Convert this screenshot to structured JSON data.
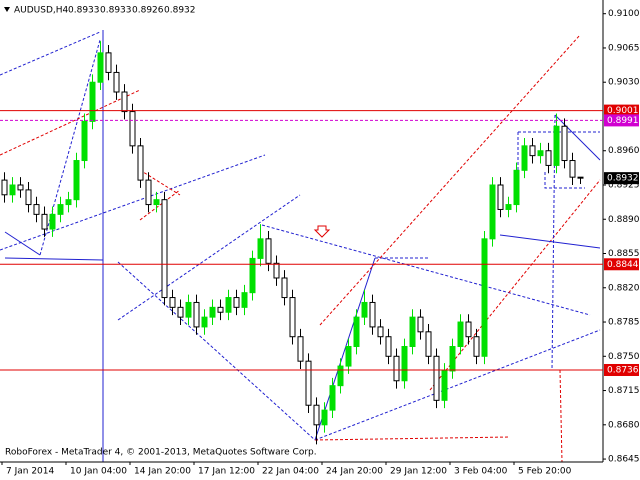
{
  "chart_data": {
    "type": "candlestick",
    "title": "AUDUSD,H4",
    "last_bar": [
      0.8933,
      0.8933,
      0.8926,
      0.8932
    ],
    "footer": "RoboForex - MetaTrader 4, © 2001-2013, MetaQuotes Software Corp.",
    "x_labels": [
      "7 Jan 2014",
      "10 Jan 04:00",
      "14 Jan 20:00",
      "17 Jan 12:00",
      "22 Jan 04:00",
      "24 Jan 20:00",
      "29 Jan 12:00",
      "3 Feb 04:00",
      "5 Feb 20:00"
    ],
    "up_color": "#00e000",
    "down_color": "#ffffff",
    "open": [
      0.893,
      0.8915,
      0.8925,
      0.892,
      0.8905,
      0.8895,
      0.888,
      0.8895,
      0.8905,
      0.891,
      0.895,
      0.899,
      0.903,
      0.906,
      0.904,
      0.902,
      0.9,
      0.8965,
      0.893,
      0.8905,
      0.891,
      0.881,
      0.88,
      0.879,
      0.8805,
      0.878,
      0.879,
      0.88,
      0.8795,
      0.881,
      0.88,
      0.8815,
      0.885,
      0.887,
      0.8845,
      0.883,
      0.881,
      0.877,
      0.8745,
      0.87,
      0.868,
      0.8695,
      0.872,
      0.874,
      0.876,
      0.879,
      0.8805,
      0.878,
      0.877,
      0.875,
      0.8725,
      0.876,
      0.879,
      0.8775,
      0.875,
      0.8705,
      0.8735,
      0.876,
      0.8785,
      0.877,
      0.875,
      0.887,
      0.8925,
      0.89,
      0.8905,
      0.894,
      0.8965,
      0.8955,
      0.896,
      0.8945,
      0.8985,
      0.895,
      0.8933
    ],
    "high": [
      0.8938,
      0.8933,
      0.8933,
      0.8928,
      0.8913,
      0.8903,
      0.8903,
      0.8913,
      0.8918,
      0.8958,
      0.8998,
      0.9038,
      0.9072,
      0.9068,
      0.9048,
      0.9028,
      0.9008,
      0.8973,
      0.8938,
      0.8918,
      0.8918,
      0.8818,
      0.8808,
      0.8813,
      0.8813,
      0.8798,
      0.8808,
      0.8808,
      0.8818,
      0.8818,
      0.8823,
      0.8858,
      0.8885,
      0.8878,
      0.8853,
      0.8838,
      0.8818,
      0.8778,
      0.8753,
      0.8708,
      0.8703,
      0.8728,
      0.8748,
      0.8768,
      0.8798,
      0.8818,
      0.8813,
      0.8788,
      0.8778,
      0.8758,
      0.8768,
      0.8798,
      0.8798,
      0.8783,
      0.8758,
      0.8743,
      0.8768,
      0.8793,
      0.8793,
      0.8778,
      0.8878,
      0.8933,
      0.8933,
      0.8913,
      0.8948,
      0.8973,
      0.8973,
      0.8968,
      0.8968,
      0.8998,
      0.8993,
      0.8958,
      0.8933
    ],
    "low": [
      0.8907,
      0.8907,
      0.8912,
      0.8897,
      0.8887,
      0.8872,
      0.8872,
      0.8887,
      0.8897,
      0.8902,
      0.8942,
      0.8982,
      0.9022,
      0.9032,
      0.9012,
      0.8992,
      0.8957,
      0.8922,
      0.8897,
      0.8897,
      0.8802,
      0.8792,
      0.8782,
      0.8782,
      0.8772,
      0.8772,
      0.8782,
      0.8787,
      0.8787,
      0.8792,
      0.8792,
      0.8807,
      0.8842,
      0.8837,
      0.8822,
      0.8802,
      0.8762,
      0.8737,
      0.8692,
      0.866,
      0.8672,
      0.8687,
      0.8712,
      0.8732,
      0.8752,
      0.8782,
      0.8772,
      0.8762,
      0.8742,
      0.8717,
      0.8717,
      0.8752,
      0.8767,
      0.8742,
      0.8697,
      0.8697,
      0.8727,
      0.8752,
      0.8762,
      0.8742,
      0.8742,
      0.8862,
      0.8892,
      0.8892,
      0.8897,
      0.8932,
      0.8947,
      0.8947,
      0.8937,
      0.8937,
      0.8942,
      0.8925,
      0.8926
    ],
    "close": [
      0.8915,
      0.8925,
      0.892,
      0.8905,
      0.8895,
      0.888,
      0.8895,
      0.8905,
      0.891,
      0.895,
      0.899,
      0.903,
      0.906,
      0.904,
      0.902,
      0.9,
      0.8965,
      0.893,
      0.8905,
      0.891,
      0.881,
      0.88,
      0.879,
      0.8805,
      0.878,
      0.879,
      0.88,
      0.8795,
      0.881,
      0.88,
      0.8815,
      0.885,
      0.887,
      0.8845,
      0.883,
      0.881,
      0.877,
      0.8745,
      0.87,
      0.868,
      0.8695,
      0.872,
      0.874,
      0.876,
      0.879,
      0.8805,
      0.878,
      0.877,
      0.875,
      0.8725,
      0.876,
      0.879,
      0.8775,
      0.875,
      0.8705,
      0.8735,
      0.876,
      0.8785,
      0.877,
      0.875,
      0.887,
      0.8925,
      0.89,
      0.8905,
      0.894,
      0.8965,
      0.8955,
      0.896,
      0.8945,
      0.8985,
      0.895,
      0.8933,
      0.8932
    ],
    "ylim": [
      0.8642,
      0.9114
    ],
    "yticks": [
      {
        "value": 0.91,
        "label": "0.9100"
      },
      0.9065,
      {
        "value": 0.903,
        "label": "0.9030"
      },
      {
        "value": 0.896,
        "label": "0.8960"
      },
      0.8925,
      {
        "value": 0.889,
        "label": "0.8890"
      },
      0.8855,
      {
        "value": 0.882,
        "label": "0.8820"
      },
      0.8785,
      {
        "value": 0.875,
        "label": "0.8750"
      },
      0.8715,
      {
        "value": 0.868,
        "label": "0.8680"
      },
      0.8645
    ],
    "levels": [
      {
        "value": 0.9001,
        "color": "#e00000",
        "dashed": false
      },
      {
        "value": 0.8991,
        "color": "#d000d0",
        "dashed": true
      },
      {
        "value": 0.8844,
        "color": "#e00000",
        "dashed": false
      },
      {
        "value": 0.8736,
        "color": "#e00000",
        "dashed": false
      }
    ],
    "current_price": 0.8932
  }
}
